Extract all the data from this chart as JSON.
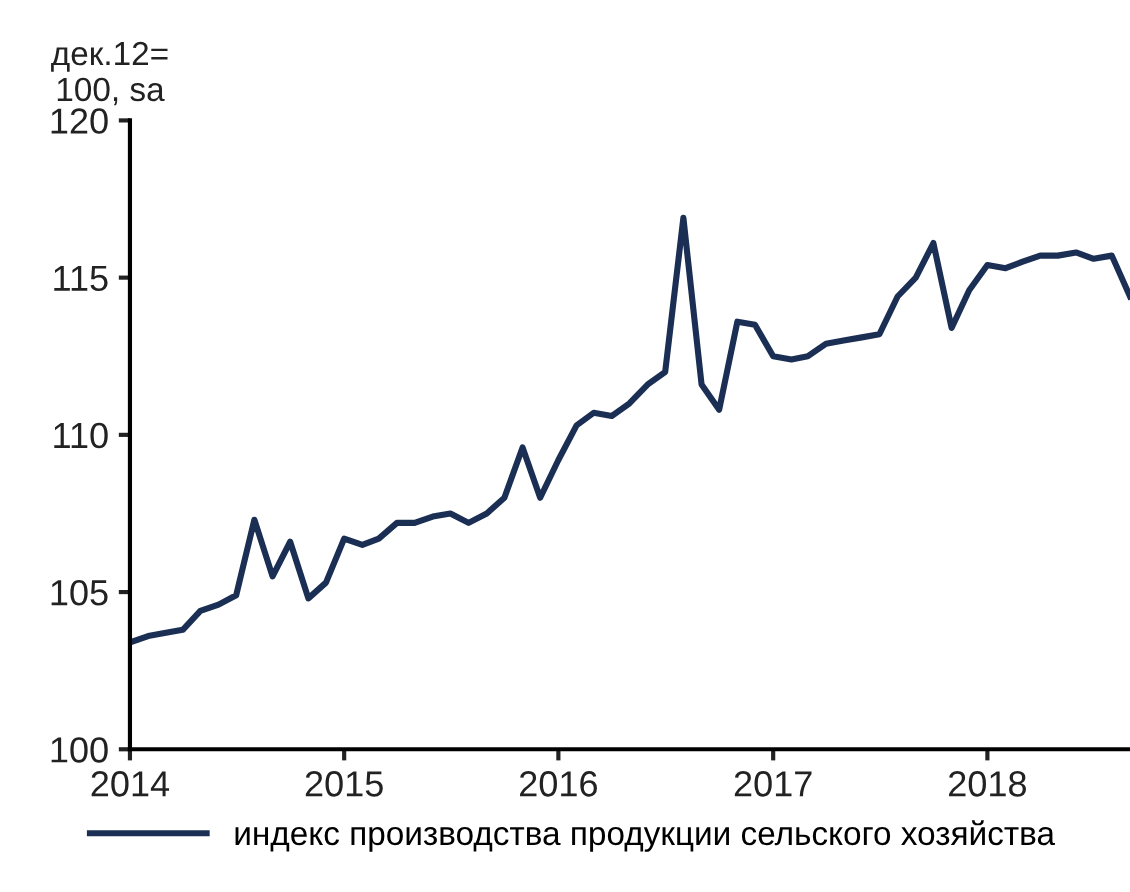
{
  "chart_data": {
    "type": "line",
    "ylabel": "дек.12=\n100, sa",
    "x": [
      "2014-01",
      "2014-02",
      "2014-03",
      "2014-04",
      "2014-05",
      "2014-06",
      "2014-07",
      "2014-08",
      "2014-09",
      "2014-10",
      "2014-11",
      "2014-12",
      "2015-01",
      "2015-02",
      "2015-03",
      "2015-04",
      "2015-05",
      "2015-06",
      "2015-07",
      "2015-08",
      "2015-09",
      "2015-10",
      "2015-11",
      "2015-12",
      "2016-01",
      "2016-02",
      "2016-03",
      "2016-04",
      "2016-05",
      "2016-06",
      "2016-07",
      "2016-08",
      "2016-09",
      "2016-10",
      "2016-11",
      "2016-12",
      "2017-01",
      "2017-02",
      "2017-03",
      "2017-04",
      "2017-05",
      "2017-06",
      "2017-07",
      "2017-08",
      "2017-09",
      "2017-10",
      "2017-11",
      "2017-12",
      "2018-01",
      "2018-02",
      "2018-03",
      "2018-04",
      "2018-05",
      "2018-06",
      "2018-07",
      "2018-08",
      "2018-09"
    ],
    "series": [
      {
        "name": "индекс производства продукции сельского хозяйства",
        "color": "#1b2f55",
        "values": [
          103.4,
          103.6,
          103.7,
          103.8,
          104.4,
          104.6,
          104.9,
          107.3,
          105.5,
          106.6,
          104.8,
          105.3,
          106.7,
          106.5,
          106.7,
          107.2,
          107.2,
          107.4,
          107.5,
          107.2,
          107.5,
          108.0,
          109.6,
          108.0,
          109.2,
          110.3,
          110.7,
          110.6,
          111.0,
          111.6,
          112.0,
          116.9,
          111.6,
          110.8,
          113.6,
          113.5,
          112.5,
          112.4,
          112.5,
          112.9,
          113.0,
          113.1,
          113.2,
          114.4,
          115.0,
          116.1,
          113.4,
          114.6,
          115.4,
          115.3,
          115.5,
          115.7,
          115.7,
          115.8,
          115.6,
          115.7,
          114.4
        ]
      }
    ],
    "xlim": [
      "2014-01",
      "2018-09"
    ],
    "xticks": [
      {
        "value": "2014-01",
        "label": "2014"
      },
      {
        "value": "2015-01",
        "label": "2015"
      },
      {
        "value": "2016-01",
        "label": "2016"
      },
      {
        "value": "2017-01",
        "label": "2017"
      },
      {
        "value": "2018-01",
        "label": "2018"
      }
    ],
    "ylim": [
      100,
      120
    ],
    "yticks": [
      100,
      105,
      110,
      115,
      120
    ],
    "grid": false,
    "legend": "bottom",
    "marker": "none",
    "line_style": "solid"
  }
}
